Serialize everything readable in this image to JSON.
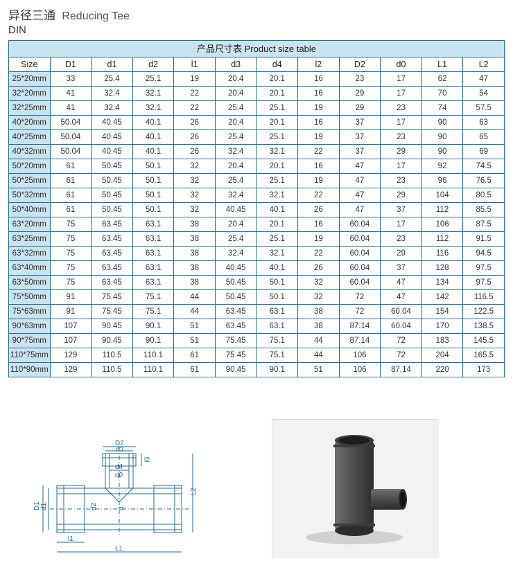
{
  "header": {
    "title_cn": "异径三通",
    "title_en": "Reducing Tee",
    "subtitle": "DIN"
  },
  "table": {
    "caption": "产品尺寸表 Product size table",
    "columns": [
      "Size",
      "D1",
      "d1",
      "d2",
      "l1",
      "d3",
      "d4",
      "l2",
      "D2",
      "d0",
      "L1",
      "L2"
    ],
    "rows": [
      [
        "25*20mm",
        "33",
        "25.4",
        "25.1",
        "19",
        "20.4",
        "20.1",
        "16",
        "23",
        "17",
        "62",
        "47"
      ],
      [
        "32*20mm",
        "41",
        "32.4",
        "32.1",
        "22",
        "20.4",
        "20.1",
        "16",
        "29",
        "17",
        "70",
        "54"
      ],
      [
        "32*25mm",
        "41",
        "32.4",
        "32.1",
        "22",
        "25.4",
        "25.1",
        "19",
        "29",
        "23",
        "74",
        "57.5"
      ],
      [
        "40*20mm",
        "50.04",
        "40.45",
        "40.1",
        "26",
        "20.4",
        "20.1",
        "16",
        "37",
        "17",
        "90",
        "63"
      ],
      [
        "40*25mm",
        "50.04",
        "40.45",
        "40.1",
        "26",
        "25.4",
        "25.1",
        "19",
        "37",
        "23",
        "90",
        "65"
      ],
      [
        "40*32mm",
        "50.04",
        "40.45",
        "40.1",
        "26",
        "32.4",
        "32.1",
        "22",
        "37",
        "29",
        "90",
        "69"
      ],
      [
        "50*20mm",
        "61",
        "50.45",
        "50.1",
        "32",
        "20.4",
        "20.1",
        "16",
        "47",
        "17",
        "92",
        "74.5"
      ],
      [
        "50*25mm",
        "61",
        "50.45",
        "50.1",
        "32",
        "25.4",
        "25.1",
        "19",
        "47",
        "23",
        "96",
        "76.5"
      ],
      [
        "50*32mm",
        "61",
        "50.45",
        "50.1",
        "32",
        "32.4",
        "32.1",
        "22",
        "47",
        "29",
        "104",
        "80.5"
      ],
      [
        "50*40mm",
        "61",
        "50.45",
        "50.1",
        "32",
        "40.45",
        "40.1",
        "26",
        "47",
        "37",
        "112",
        "85.5"
      ],
      [
        "63*20mm",
        "75",
        "63.45",
        "63.1",
        "38",
        "20.4",
        "20.1",
        "16",
        "60.04",
        "17",
        "106",
        "87.5"
      ],
      [
        "63*25mm",
        "75",
        "63.45",
        "63.1",
        "38",
        "25.4",
        "25.1",
        "19",
        "60.04",
        "23",
        "112",
        "91.5"
      ],
      [
        "63*32mm",
        "75",
        "63.45",
        "63.1",
        "38",
        "32.4",
        "32.1",
        "22",
        "60.04",
        "29",
        "116",
        "94.5"
      ],
      [
        "63*40mm",
        "75",
        "63.45",
        "63.1",
        "38",
        "40.45",
        "40.1",
        "26",
        "60.04",
        "37",
        "128",
        "97.5"
      ],
      [
        "63*50mm",
        "75",
        "63.45",
        "63.1",
        "38",
        "50.45",
        "50.1",
        "32",
        "60.04",
        "47",
        "134",
        "97.5"
      ],
      [
        "75*50mm",
        "91",
        "75.45",
        "75.1",
        "44",
        "50.45",
        "50.1",
        "32",
        "72",
        "47",
        "142",
        "116.5"
      ],
      [
        "75*63mm",
        "91",
        "75.45",
        "75.1",
        "44",
        "63.45",
        "63.1",
        "38",
        "72",
        "60.04",
        "154",
        "122.5"
      ],
      [
        "90*63mm",
        "107",
        "90.45",
        "90.1",
        "51",
        "63.45",
        "63.1",
        "38",
        "87.14",
        "60.04",
        "170",
        "138.5"
      ],
      [
        "90*75mm",
        "107",
        "90.45",
        "90.1",
        "51",
        "75.45",
        "75.1",
        "44",
        "87.14",
        "72",
        "183",
        "145.5"
      ],
      [
        "110*75mm",
        "129",
        "110.5",
        "110.1",
        "61",
        "75.45",
        "75.1",
        "44",
        "106",
        "72",
        "204",
        "165.5"
      ],
      [
        "110*90mm",
        "129",
        "110.5",
        "110.1",
        "61",
        "90.45",
        "90.1",
        "51",
        "106",
        "87.14",
        "220",
        "173"
      ]
    ]
  },
  "diagram": {
    "stroke": "#2a6a8c",
    "labels": {
      "D1": "D1",
      "d1": "d1",
      "d2": "d2",
      "d3": "d3",
      "d4": "d4",
      "D2": "D2",
      "d0": "d0",
      "l1": "l1",
      "l2": "l2",
      "L1": "L1",
      "L2": "L2",
      "d": "d"
    }
  },
  "colors": {
    "border": "#2a6a8c",
    "header_bg": "#c9e3ef",
    "pipe_body": "#4b4d4f",
    "pipe_shadow": "#2b2d2f",
    "pipe_hilite": "#6c6e70"
  }
}
